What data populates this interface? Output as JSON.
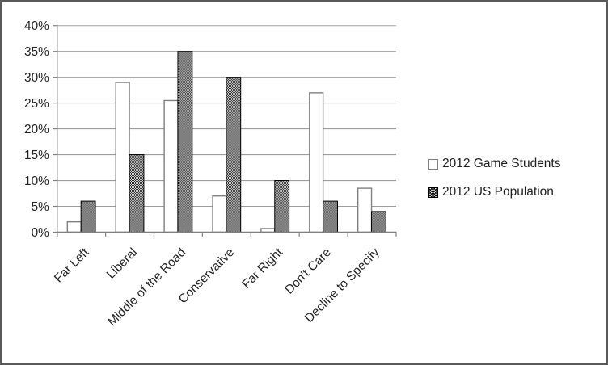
{
  "chart_data": {
    "type": "bar",
    "title": "",
    "categories": [
      "Far Left",
      "Liberal",
      "Middle of the Road",
      "Conservative",
      "Far Right",
      "Don't Care",
      "Decline to Specify"
    ],
    "series": [
      {
        "name": "2012 Game Students",
        "values": [
          2,
          29,
          25.5,
          7,
          0.7,
          27,
          8.5
        ],
        "fill_style": "solid-white"
      },
      {
        "name": "2012 US Population",
        "values": [
          6,
          15,
          35,
          30,
          10,
          6,
          4
        ],
        "fill_style": "black-crosshatch"
      }
    ],
    "xlabel": "",
    "ylabel": "",
    "ylim": [
      0,
      40
    ],
    "ytick_step": 5,
    "ytick_labels": [
      "0%",
      "5%",
      "10%",
      "15%",
      "20%",
      "25%",
      "30%",
      "35%",
      "40%"
    ],
    "grid": true,
    "legend_position": "center-right",
    "category_label_rotation_deg": -45
  },
  "colors": {
    "background": "#ffffff",
    "frame_border": "#595959",
    "gridline": "#9d9d9d",
    "axis": "#7f7f7f",
    "student_bar_fill": "#ffffff",
    "student_bar_stroke": "#7f7f7f",
    "population_bar_stroke": "#000000",
    "text": "#1f1f1f"
  }
}
